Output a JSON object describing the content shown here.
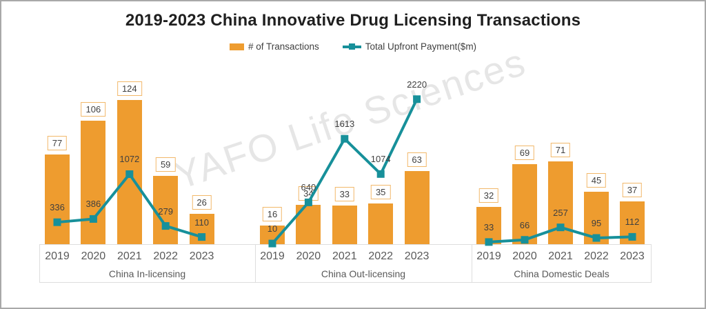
{
  "chart_data": {
    "type": "bar",
    "variant": "small-multiples combo: bars with overlaid line (secondary axis), shared scales across panels",
    "title": "2019-2023 China Innovative Drug Licensing Transactions",
    "categories": [
      "2019",
      "2020",
      "2021",
      "2022",
      "2023"
    ],
    "legend": [
      {
        "label": "# of Transactions",
        "marker": "square",
        "color": "#EE9C2F"
      },
      {
        "label": "Total Upfront Payment($m)",
        "marker": "line-square",
        "color": "#17909A"
      }
    ],
    "legend_position": "top-center",
    "grid": false,
    "axes": {
      "y_axis_visible": false,
      "bar_ylim": [
        0,
        155
      ],
      "line_ylim": [
        0,
        2770
      ],
      "shared_across_panels": true
    },
    "panels": [
      {
        "label": "China In-licensing",
        "series": [
          {
            "name": "# of Transactions",
            "type": "bar",
            "values": [
              77,
              106,
              124,
              59,
              26
            ]
          },
          {
            "name": "Total Upfront Payment($m)",
            "type": "line",
            "values": [
              336,
              386,
              1072,
              279,
              110
            ]
          }
        ]
      },
      {
        "label": "China Out-licensing",
        "series": [
          {
            "name": "# of Transactions",
            "type": "bar",
            "values": [
              16,
              34,
              33,
              35,
              63
            ]
          },
          {
            "name": "Total Upfront Payment($m)",
            "type": "line",
            "values": [
              10,
              640,
              1613,
              1074,
              2220
            ]
          }
        ]
      },
      {
        "label": "China Domestic Deals",
        "series": [
          {
            "name": "# of Transactions",
            "type": "bar",
            "values": [
              32,
              69,
              71,
              45,
              37
            ]
          },
          {
            "name": "Total Upfront Payment($m)",
            "type": "line",
            "values": [
              33,
              66,
              257,
              95,
              112
            ]
          }
        ]
      }
    ],
    "watermark": "YAFO Life Sciences",
    "colors": {
      "bar": "#EE9C2F",
      "line": "#17909A",
      "label_box_border": "#F2B869",
      "value_text": "#3f3f3f",
      "axis_text": "#595959",
      "axis_line": "#dddddd",
      "title_text": "#1f1f1f",
      "watermark_text": "#cfcfcf",
      "frame_border": "#a8a8a8"
    }
  }
}
